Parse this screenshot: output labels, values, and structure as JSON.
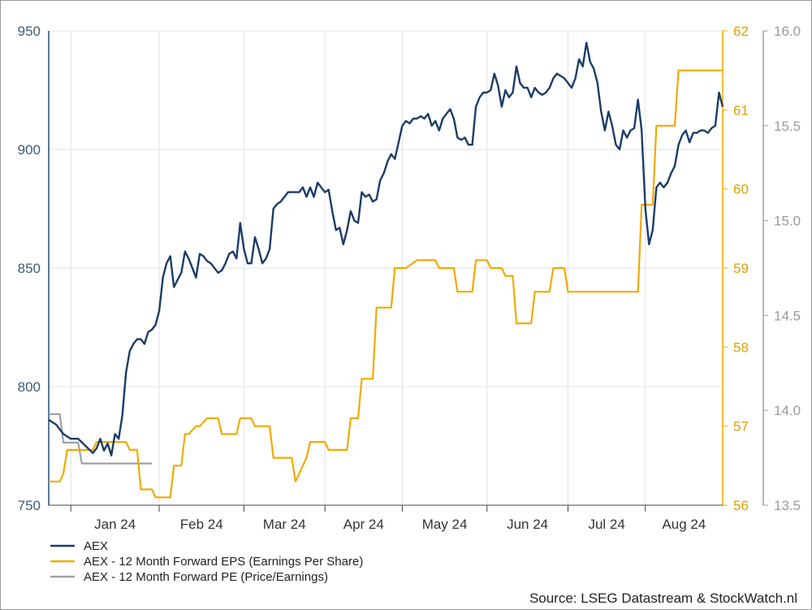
{
  "chart_data": {
    "type": "line",
    "title": "",
    "x_tick_labels": [
      "Jan 24",
      "Feb 24",
      "Mar 24",
      "Apr 24",
      "May 24",
      "Jun 24",
      "Jul 24",
      "Aug 24"
    ],
    "axes": {
      "left": {
        "ylim": [
          750,
          950
        ],
        "ticks": [
          "950",
          "900",
          "850",
          "800",
          "750"
        ],
        "color": "#1f4e79"
      },
      "middle": {
        "ylim": [
          56,
          62
        ],
        "ticks": [
          "62",
          "61",
          "60",
          "59",
          "58",
          "57",
          "56"
        ],
        "color": "#f2a900"
      },
      "right": {
        "ylim": [
          13.5,
          16.0
        ],
        "ticks": [
          "16.0",
          "15.5",
          "15.0",
          "14.5",
          "14.0",
          "13.5"
        ],
        "color": "#a0a0a0"
      }
    },
    "grid": true,
    "legend_position": "bottom-left",
    "series": [
      {
        "name": "AEX",
        "axis": "left",
        "color": "#1a3c68",
        "points": [
          [
            0,
            786
          ],
          [
            2,
            784
          ],
          [
            4,
            780
          ],
          [
            6,
            778
          ],
          [
            8,
            778
          ],
          [
            10,
            775
          ],
          [
            12,
            772
          ],
          [
            13,
            774
          ],
          [
            14,
            778
          ],
          [
            15,
            773
          ],
          [
            16,
            776
          ],
          [
            17,
            771
          ],
          [
            18,
            780
          ],
          [
            19,
            778
          ],
          [
            20,
            788
          ],
          [
            21,
            806
          ],
          [
            22,
            815
          ],
          [
            23,
            818
          ],
          [
            24,
            820
          ],
          [
            25,
            820
          ],
          [
            26,
            818
          ],
          [
            27,
            823
          ],
          [
            28,
            824
          ],
          [
            29,
            826
          ],
          [
            30,
            832
          ],
          [
            31,
            846
          ],
          [
            32,
            852
          ],
          [
            33,
            855
          ],
          [
            34,
            842
          ],
          [
            35,
            845
          ],
          [
            36,
            848
          ],
          [
            37,
            857
          ],
          [
            38,
            854
          ],
          [
            39,
            850
          ],
          [
            40,
            846
          ],
          [
            41,
            856
          ],
          [
            42,
            855
          ],
          [
            43,
            853
          ],
          [
            44,
            852
          ],
          [
            45,
            850
          ],
          [
            46,
            848
          ],
          [
            47,
            849
          ],
          [
            48,
            852
          ],
          [
            49,
            856
          ],
          [
            50,
            857
          ],
          [
            51,
            854
          ],
          [
            52,
            869
          ],
          [
            53,
            858
          ],
          [
            54,
            852
          ],
          [
            55,
            852
          ],
          [
            56,
            863
          ],
          [
            57,
            858
          ],
          [
            58,
            852
          ],
          [
            59,
            854
          ],
          [
            60,
            858
          ],
          [
            61,
            875
          ],
          [
            62,
            877
          ],
          [
            63,
            878
          ],
          [
            64,
            880
          ],
          [
            65,
            882
          ],
          [
            66,
            882
          ],
          [
            67,
            882
          ],
          [
            68,
            882
          ],
          [
            69,
            884
          ],
          [
            70,
            880
          ],
          [
            71,
            884
          ],
          [
            72,
            880
          ],
          [
            73,
            886
          ],
          [
            74,
            884
          ],
          [
            75,
            882
          ],
          [
            76,
            883
          ],
          [
            77,
            874
          ],
          [
            78,
            866
          ],
          [
            79,
            867
          ],
          [
            80,
            860
          ],
          [
            81,
            866
          ],
          [
            82,
            874
          ],
          [
            83,
            870
          ],
          [
            84,
            869
          ],
          [
            85,
            882
          ],
          [
            86,
            880
          ],
          [
            87,
            881
          ],
          [
            88,
            878
          ],
          [
            89,
            879
          ],
          [
            90,
            887
          ],
          [
            91,
            890
          ],
          [
            92,
            895
          ],
          [
            93,
            898
          ],
          [
            94,
            896
          ],
          [
            95,
            903
          ],
          [
            96,
            910
          ],
          [
            97,
            912
          ],
          [
            98,
            911
          ],
          [
            99,
            913
          ],
          [
            100,
            913
          ],
          [
            101,
            914
          ],
          [
            102,
            913
          ],
          [
            103,
            915
          ],
          [
            104,
            910
          ],
          [
            105,
            912
          ],
          [
            106,
            908
          ],
          [
            107,
            913
          ],
          [
            108,
            915
          ],
          [
            109,
            917
          ],
          [
            110,
            913
          ],
          [
            111,
            905
          ],
          [
            112,
            904
          ],
          [
            113,
            905
          ],
          [
            114,
            902
          ],
          [
            115,
            902
          ],
          [
            116,
            918
          ],
          [
            117,
            922
          ],
          [
            118,
            924
          ],
          [
            119,
            924
          ],
          [
            120,
            925
          ],
          [
            121,
            932
          ],
          [
            122,
            927
          ],
          [
            123,
            918
          ],
          [
            124,
            925
          ],
          [
            125,
            922
          ],
          [
            126,
            924
          ],
          [
            127,
            935
          ],
          [
            128,
            928
          ],
          [
            129,
            926
          ],
          [
            130,
            926
          ],
          [
            131,
            922
          ],
          [
            132,
            926
          ],
          [
            133,
            924
          ],
          [
            134,
            923
          ],
          [
            135,
            924
          ],
          [
            136,
            926
          ],
          [
            137,
            930
          ],
          [
            138,
            932
          ],
          [
            139,
            931
          ],
          [
            140,
            930
          ],
          [
            141,
            928
          ],
          [
            142,
            926
          ],
          [
            143,
            930
          ],
          [
            144,
            938
          ],
          [
            145,
            935
          ],
          [
            146,
            945
          ],
          [
            147,
            937
          ],
          [
            148,
            934
          ],
          [
            149,
            928
          ],
          [
            150,
            916
          ],
          [
            151,
            908
          ],
          [
            152,
            916
          ],
          [
            153,
            910
          ],
          [
            154,
            902
          ],
          [
            155,
            900
          ],
          [
            156,
            908
          ],
          [
            157,
            905
          ],
          [
            158,
            908
          ],
          [
            159,
            909
          ],
          [
            160,
            921
          ],
          [
            161,
            908
          ],
          [
            162,
            875
          ],
          [
            163,
            860
          ],
          [
            164,
            866
          ],
          [
            165,
            884
          ],
          [
            166,
            886
          ],
          [
            167,
            884
          ],
          [
            168,
            886
          ],
          [
            169,
            890
          ],
          [
            170,
            893
          ],
          [
            171,
            902
          ],
          [
            172,
            906
          ],
          [
            173,
            908
          ],
          [
            174,
            903
          ],
          [
            175,
            907
          ],
          [
            176,
            907
          ],
          [
            177,
            908
          ],
          [
            178,
            908
          ],
          [
            179,
            907
          ],
          [
            180,
            909
          ],
          [
            181,
            910
          ],
          [
            182,
            924
          ],
          [
            183,
            918
          ]
        ]
      },
      {
        "name": "AEX - 12 Month Forward EPS (Earnings Per Share)",
        "axis": "middle",
        "color": "#f2a900",
        "points": [
          [
            0,
            56.3
          ],
          [
            3,
            56.3
          ],
          [
            4,
            56.4
          ],
          [
            5,
            56.7
          ],
          [
            12,
            56.7
          ],
          [
            13,
            56.8
          ],
          [
            18,
            56.8
          ],
          [
            19,
            56.8
          ],
          [
            20,
            56.8
          ],
          [
            21,
            56.8
          ],
          [
            22,
            56.7
          ],
          [
            23,
            56.7
          ],
          [
            24,
            56.7
          ],
          [
            25,
            56.2
          ],
          [
            26,
            56.2
          ],
          [
            28,
            56.2
          ],
          [
            29,
            56.1
          ],
          [
            30,
            56.1
          ],
          [
            33,
            56.1
          ],
          [
            34,
            56.5
          ],
          [
            35,
            56.5
          ],
          [
            36,
            56.5
          ],
          [
            37,
            56.9
          ],
          [
            38,
            56.9
          ],
          [
            40,
            57.0
          ],
          [
            41,
            57.0
          ],
          [
            43,
            57.1
          ],
          [
            46,
            57.1
          ],
          [
            47,
            56.9
          ],
          [
            51,
            56.9
          ],
          [
            52,
            57.1
          ],
          [
            55,
            57.1
          ],
          [
            56,
            57.0
          ],
          [
            60,
            57.0
          ],
          [
            61,
            56.6
          ],
          [
            66,
            56.6
          ],
          [
            67,
            56.3
          ],
          [
            70,
            56.6
          ],
          [
            71,
            56.8
          ],
          [
            72,
            56.8
          ],
          [
            75,
            56.8
          ],
          [
            76,
            56.7
          ],
          [
            81,
            56.7
          ],
          [
            82,
            57.1
          ],
          [
            84,
            57.1
          ],
          [
            85,
            57.6
          ],
          [
            86,
            57.6
          ],
          [
            88,
            57.6
          ],
          [
            89,
            58.5
          ],
          [
            92,
            58.5
          ],
          [
            93,
            58.5
          ],
          [
            94,
            59.0
          ],
          [
            96,
            59.0
          ],
          [
            97,
            59.0
          ],
          [
            100,
            59.1
          ],
          [
            105,
            59.1
          ],
          [
            106,
            59.0
          ],
          [
            110,
            59.0
          ],
          [
            111,
            58.7
          ],
          [
            115,
            58.7
          ],
          [
            116,
            59.1
          ],
          [
            118,
            59.1
          ],
          [
            119,
            59.1
          ],
          [
            120,
            59.0
          ],
          [
            123,
            59.0
          ],
          [
            124,
            58.9
          ],
          [
            126,
            58.9
          ],
          [
            127,
            58.3
          ],
          [
            131,
            58.3
          ],
          [
            132,
            58.7
          ],
          [
            136,
            58.7
          ],
          [
            137,
            59.0
          ],
          [
            139,
            59.0
          ],
          [
            140,
            59.0
          ],
          [
            141,
            58.7
          ],
          [
            146,
            58.7
          ],
          [
            147,
            58.7
          ],
          [
            148,
            58.7
          ],
          [
            149,
            58.7
          ],
          [
            150,
            58.7
          ],
          [
            151,
            58.7
          ],
          [
            152,
            58.7
          ],
          [
            153,
            58.7
          ],
          [
            154,
            58.7
          ],
          [
            155,
            58.7
          ],
          [
            156,
            58.7
          ],
          [
            157,
            58.7
          ],
          [
            158,
            58.7
          ],
          [
            159,
            58.7
          ],
          [
            160,
            58.7
          ],
          [
            161,
            59.8
          ],
          [
            162,
            59.8
          ],
          [
            163,
            59.8
          ],
          [
            164,
            59.8
          ],
          [
            165,
            60.8
          ],
          [
            166,
            60.8
          ],
          [
            167,
            60.8
          ],
          [
            168,
            60.8
          ],
          [
            169,
            60.8
          ],
          [
            170,
            60.8
          ],
          [
            171,
            61.5
          ],
          [
            172,
            61.5
          ],
          [
            173,
            61.5
          ],
          [
            174,
            61.5
          ],
          [
            175,
            61.5
          ],
          [
            176,
            61.5
          ],
          [
            177,
            61.5
          ],
          [
            178,
            61.5
          ],
          [
            179,
            61.5
          ],
          [
            180,
            61.5
          ],
          [
            181,
            61.5
          ],
          [
            182,
            61.5
          ],
          [
            183,
            61.5
          ]
        ]
      },
      {
        "name": "AEX - 12 Month Forward PE (Price/Earnings)",
        "axis": "right",
        "color": "#a0a0a0",
        "points": [
          [
            0,
            13.98
          ],
          [
            3,
            13.98
          ],
          [
            4,
            13.83
          ],
          [
            8,
            13.83
          ],
          [
            9,
            13.72
          ],
          [
            18,
            13.72
          ],
          [
            19,
            13.72
          ],
          [
            20,
            13.72
          ],
          [
            21,
            13.72
          ],
          [
            22,
            13.72
          ],
          [
            23,
            13.72
          ],
          [
            24,
            13.72
          ],
          [
            25,
            13.72
          ],
          [
            26,
            13.72
          ],
          [
            27,
            13.72
          ],
          [
            28,
            13.72
          ]
        ]
      }
    ]
  },
  "legend": {
    "items": [
      {
        "label": "AEX",
        "color": "#1a3c68"
      },
      {
        "label": "AEX - 12 Month Forward EPS (Earnings Per Share)",
        "color": "#f2a900"
      },
      {
        "label": "AEX - 12 Month Forward PE (Price/Earnings)",
        "color": "#a0a0a0"
      }
    ]
  },
  "source": "Source: LSEG Datastream & StockWatch.nl"
}
